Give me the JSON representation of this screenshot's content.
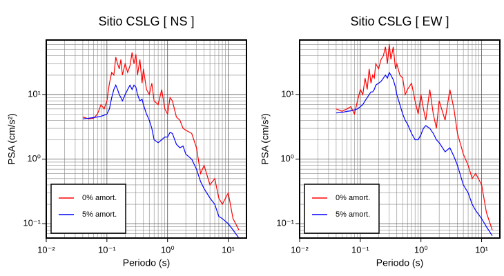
{
  "chart_data": [
    {
      "type": "line",
      "title": "Sitio CSLG [ NS ]",
      "xlabel": "Periodo (s)",
      "ylabel": "PSA (cm/s²)",
      "log_x": true,
      "log_y": true,
      "grid": true,
      "legend": "lower left",
      "xlim": [
        0.01,
        20
      ],
      "ylim": [
        0.06,
        70
      ],
      "xticks": [
        {
          "value": 0.01,
          "label": "10⁻²"
        },
        {
          "value": 0.1,
          "label": "10⁻¹"
        },
        {
          "value": 1,
          "label": "10⁰"
        },
        {
          "value": 10,
          "label": "10¹"
        }
      ],
      "yticks": [
        {
          "value": 0.1,
          "label": "10⁻¹"
        },
        {
          "value": 1,
          "label": "10⁰"
        },
        {
          "value": 10,
          "label": "10¹"
        }
      ],
      "xminor": [
        0.02,
        0.03,
        0.04,
        0.05,
        0.06,
        0.07,
        0.08,
        0.09,
        0.2,
        0.3,
        0.4,
        0.5,
        0.6,
        0.7,
        0.8,
        0.9,
        2,
        3,
        4,
        5,
        6,
        7,
        8,
        9
      ],
      "yminor": [
        0.07,
        0.08,
        0.09,
        0.2,
        0.3,
        0.4,
        0.5,
        0.6,
        0.7,
        0.8,
        0.9,
        2,
        3,
        4,
        5,
        6,
        7,
        8,
        9,
        20,
        30,
        40,
        50,
        60
      ],
      "x": [
        0.04,
        0.05,
        0.06,
        0.07,
        0.08,
        0.09,
        0.1,
        0.11,
        0.12,
        0.13,
        0.14,
        0.15,
        0.16,
        0.17,
        0.18,
        0.2,
        0.22,
        0.24,
        0.26,
        0.28,
        0.3,
        0.32,
        0.35,
        0.38,
        0.4,
        0.45,
        0.5,
        0.55,
        0.6,
        0.7,
        0.8,
        0.9,
        1.0,
        1.1,
        1.2,
        1.4,
        1.6,
        1.8,
        2.0,
        2.5,
        3.0,
        3.5,
        4.0,
        5.0,
        6.0,
        7.0,
        8.0,
        10,
        12,
        15
      ],
      "series": [
        {
          "name": "0% amort.",
          "color": "#ff0000",
          "values": [
            4.5,
            4.2,
            4.3,
            5,
            7,
            6,
            8,
            15,
            22,
            20,
            38,
            30,
            25,
            35,
            20,
            30,
            22,
            28,
            45,
            30,
            42,
            20,
            35,
            15,
            25,
            12,
            10,
            15,
            8,
            7,
            12,
            6,
            5,
            9,
            8,
            4.5,
            4,
            3,
            2.8,
            2.5,
            1.5,
            0.6,
            0.8,
            0.4,
            0.5,
            0.25,
            0.2,
            0.3,
            0.12,
            0.08
          ]
        },
        {
          "name": "5% amort.",
          "color": "#0000ff",
          "values": [
            4.2,
            4.3,
            4.4,
            4.5,
            4.6,
            4.8,
            5,
            6,
            9,
            12,
            14,
            12,
            10,
            9,
            8,
            10,
            12,
            14,
            12,
            14,
            13,
            10,
            8,
            8.5,
            7,
            5,
            4,
            3,
            2,
            1.8,
            2,
            2.2,
            2.2,
            2.6,
            2.5,
            1.7,
            1.5,
            1.6,
            1.2,
            1.0,
            0.7,
            0.45,
            0.35,
            0.25,
            0.2,
            0.13,
            0.12,
            0.1,
            0.08,
            0.06
          ]
        }
      ]
    },
    {
      "type": "line",
      "title": "Sitio CSLG [ EW ]",
      "xlabel": "Periodo (s)",
      "ylabel": "PSA (cm/s²)",
      "log_x": true,
      "log_y": true,
      "grid": true,
      "legend": "lower left",
      "xlim": [
        0.01,
        20
      ],
      "ylim": [
        0.06,
        70
      ],
      "xticks": [
        {
          "value": 0.01,
          "label": "10⁻²"
        },
        {
          "value": 0.1,
          "label": "10⁻¹"
        },
        {
          "value": 1,
          "label": "10⁰"
        },
        {
          "value": 10,
          "label": "10¹"
        }
      ],
      "yticks": [
        {
          "value": 0.1,
          "label": "10⁻¹"
        },
        {
          "value": 1,
          "label": "10⁰"
        },
        {
          "value": 10,
          "label": "10¹"
        }
      ],
      "xminor": [
        0.02,
        0.03,
        0.04,
        0.05,
        0.06,
        0.07,
        0.08,
        0.09,
        0.2,
        0.3,
        0.4,
        0.5,
        0.6,
        0.7,
        0.8,
        0.9,
        2,
        3,
        4,
        5,
        6,
        7,
        8,
        9
      ],
      "yminor": [
        0.07,
        0.08,
        0.09,
        0.2,
        0.3,
        0.4,
        0.5,
        0.6,
        0.7,
        0.8,
        0.9,
        2,
        3,
        4,
        5,
        6,
        7,
        8,
        9,
        20,
        30,
        40,
        50,
        60
      ],
      "x": [
        0.04,
        0.05,
        0.06,
        0.07,
        0.08,
        0.09,
        0.1,
        0.11,
        0.12,
        0.13,
        0.14,
        0.15,
        0.16,
        0.17,
        0.18,
        0.2,
        0.22,
        0.24,
        0.26,
        0.28,
        0.3,
        0.32,
        0.35,
        0.38,
        0.4,
        0.45,
        0.5,
        0.55,
        0.6,
        0.7,
        0.8,
        0.9,
        1.0,
        1.1,
        1.2,
        1.4,
        1.6,
        1.8,
        2.0,
        2.5,
        3.0,
        3.5,
        4.0,
        5.0,
        6.0,
        7.0,
        8.0,
        10,
        12,
        15
      ],
      "series": [
        {
          "name": "0% amort.",
          "color": "#ff0000",
          "values": [
            6,
            5.5,
            6,
            6.5,
            5,
            8,
            12,
            10,
            18,
            12,
            25,
            15,
            20,
            18,
            30,
            25,
            35,
            40,
            55,
            30,
            60,
            35,
            55,
            25,
            30,
            20,
            18,
            10,
            12,
            15,
            8,
            5,
            10,
            6,
            4,
            12,
            5,
            3,
            8,
            4,
            12,
            6,
            2.5,
            1.2,
            0.8,
            0.5,
            0.6,
            0.4,
            0.15,
            0.08
          ]
        },
        {
          "name": "5% amort.",
          "color": "#0000ff",
          "values": [
            5.2,
            5.3,
            5.5,
            5.6,
            5.8,
            6,
            6.5,
            7,
            8,
            9,
            10,
            11,
            11,
            12,
            14,
            15,
            16,
            18,
            20,
            18,
            22,
            20,
            17,
            13,
            10,
            7,
            5,
            4,
            3.5,
            2.5,
            2,
            2,
            2.4,
            3,
            3.3,
            3,
            2.5,
            2,
            1.8,
            1.3,
            1.5,
            1.1,
            0.8,
            0.4,
            0.3,
            0.2,
            0.16,
            0.12,
            0.09,
            0.065
          ]
        }
      ]
    }
  ]
}
